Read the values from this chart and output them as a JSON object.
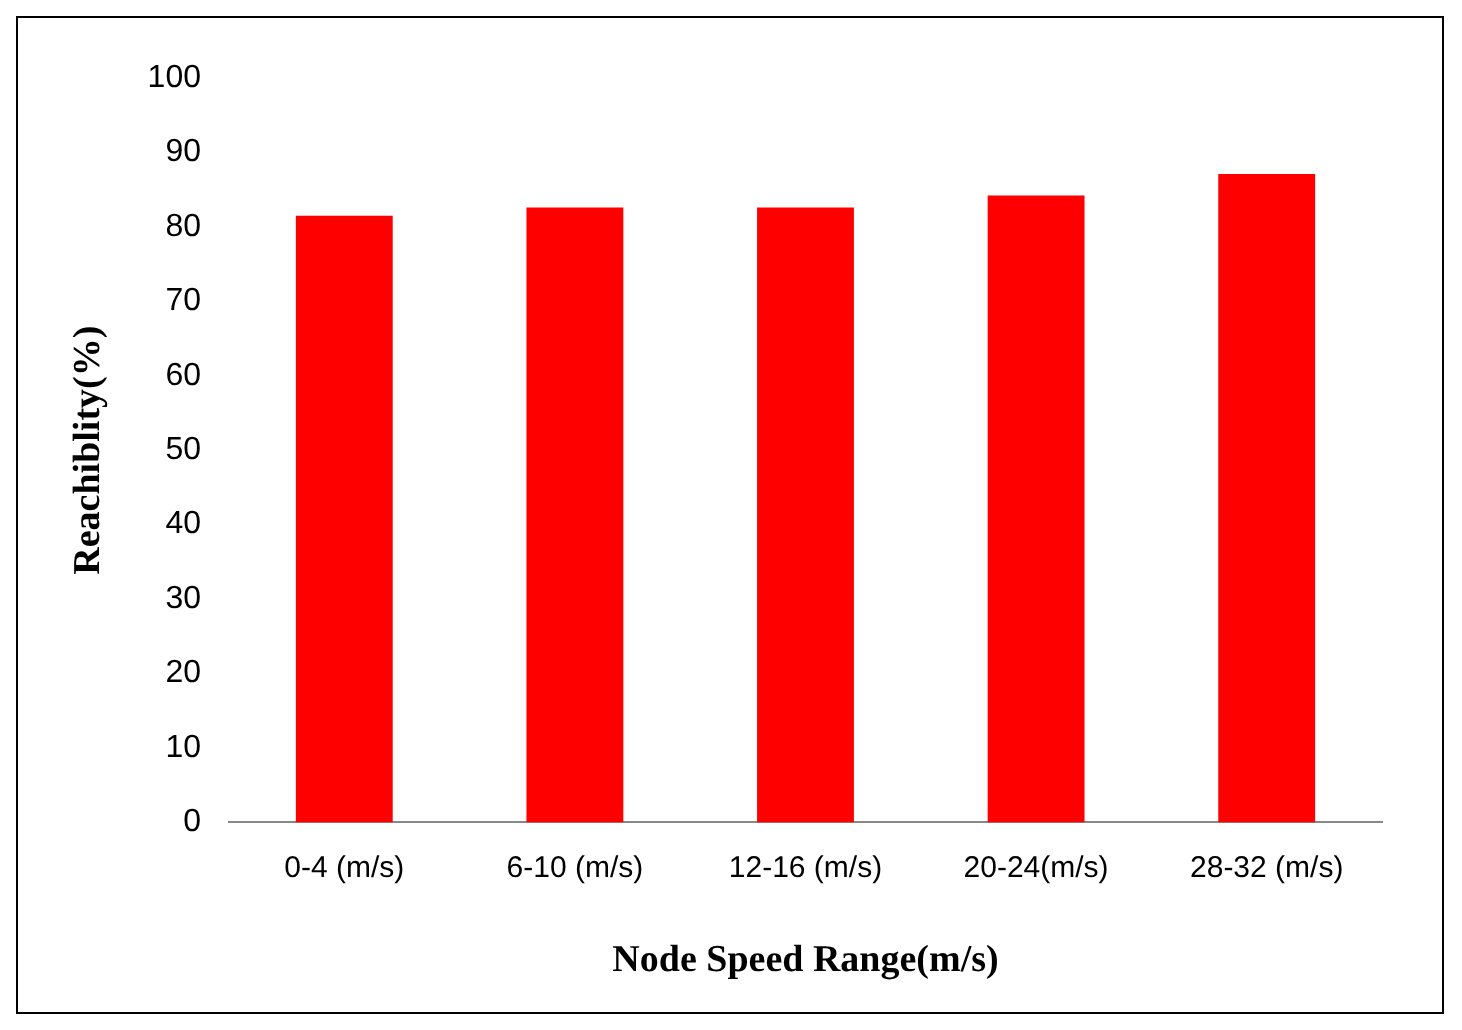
{
  "chart_data": {
    "type": "bar",
    "xlabel": "Node Speed Range(m/s)",
    "ylabel": "Reachiblity(%)",
    "categories": [
      "0-4 (m/s)",
      "6-10 (m/s)",
      "12-16 (m/s)",
      "20-24(m/s)",
      "28-32 (m/s)"
    ],
    "values": [
      81.5,
      82.6,
      82.6,
      84.2,
      87.1
    ],
    "color": "#ff0000",
    "ylim": [
      0,
      100
    ],
    "yticks": [
      0,
      10,
      20,
      30,
      40,
      50,
      60,
      70,
      80,
      90,
      100
    ],
    "grid": false,
    "legend": false
  }
}
